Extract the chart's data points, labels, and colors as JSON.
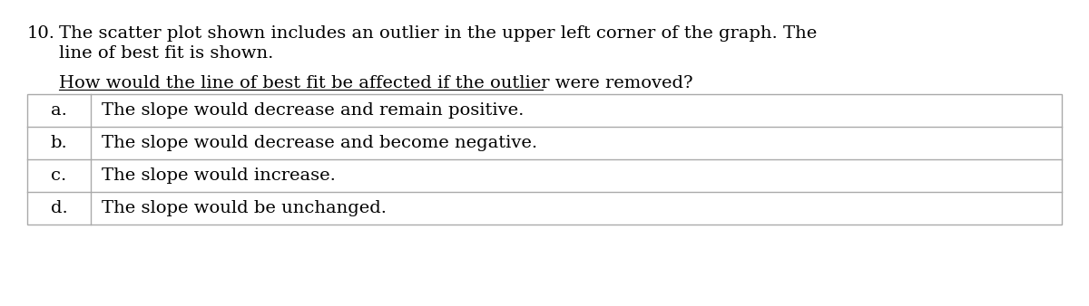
{
  "question_number": "10.",
  "question_text_line1": "The scatter plot shown includes an outlier in the upper left corner of the graph. The",
  "question_text_line2": "line of best fit is shown.",
  "sub_question": "How would the line of best fit be affected if the outlier were removed?",
  "options": [
    {
      "label": "a.",
      "text": "The slope would decrease and remain positive."
    },
    {
      "label": "b.",
      "text": "The slope would decrease and become negative."
    },
    {
      "label": "c.",
      "text": "The slope would increase."
    },
    {
      "label": "d.",
      "text": "The slope would be unchanged."
    }
  ],
  "background_color": "#ffffff",
  "text_color": "#000000",
  "table_border_color": "#aaaaaa",
  "font_size_question": 14,
  "font_size_options": 14
}
